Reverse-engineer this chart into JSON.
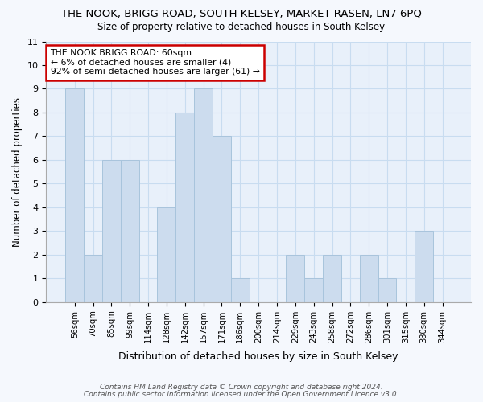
{
  "title_line1": "THE NOOK, BRIGG ROAD, SOUTH KELSEY, MARKET RASEN, LN7 6PQ",
  "title_line2": "Size of property relative to detached houses in South Kelsey",
  "xlabel": "Distribution of detached houses by size in South Kelsey",
  "ylabel": "Number of detached properties",
  "categories": [
    "56sqm",
    "70sqm",
    "85sqm",
    "99sqm",
    "114sqm",
    "128sqm",
    "142sqm",
    "157sqm",
    "171sqm",
    "186sqm",
    "200sqm",
    "214sqm",
    "229sqm",
    "243sqm",
    "258sqm",
    "272sqm",
    "286sqm",
    "301sqm",
    "315sqm",
    "330sqm",
    "344sqm"
  ],
  "values": [
    9,
    2,
    6,
    6,
    0,
    4,
    8,
    9,
    7,
    1,
    0,
    0,
    2,
    1,
    2,
    0,
    2,
    1,
    0,
    3,
    0
  ],
  "bar_color": "#ccdcee",
  "bar_edgecolor": "#a8c4dc",
  "annotation_text": "THE NOOK BRIGG ROAD: 60sqm\n← 6% of detached houses are smaller (4)\n92% of semi-detached houses are larger (61) →",
  "annotation_box_color": "#ffffff",
  "annotation_box_edgecolor": "#cc0000",
  "ylim": [
    0,
    11
  ],
  "yticks": [
    0,
    1,
    2,
    3,
    4,
    5,
    6,
    7,
    8,
    9,
    10,
    11
  ],
  "grid_color": "#c8dcf0",
  "plot_bg_color": "#e8f0fa",
  "fig_bg_color": "#f5f8fd",
  "footnote1": "Contains HM Land Registry data © Crown copyright and database right 2024.",
  "footnote2": "Contains public sector information licensed under the Open Government Licence v3.0."
}
